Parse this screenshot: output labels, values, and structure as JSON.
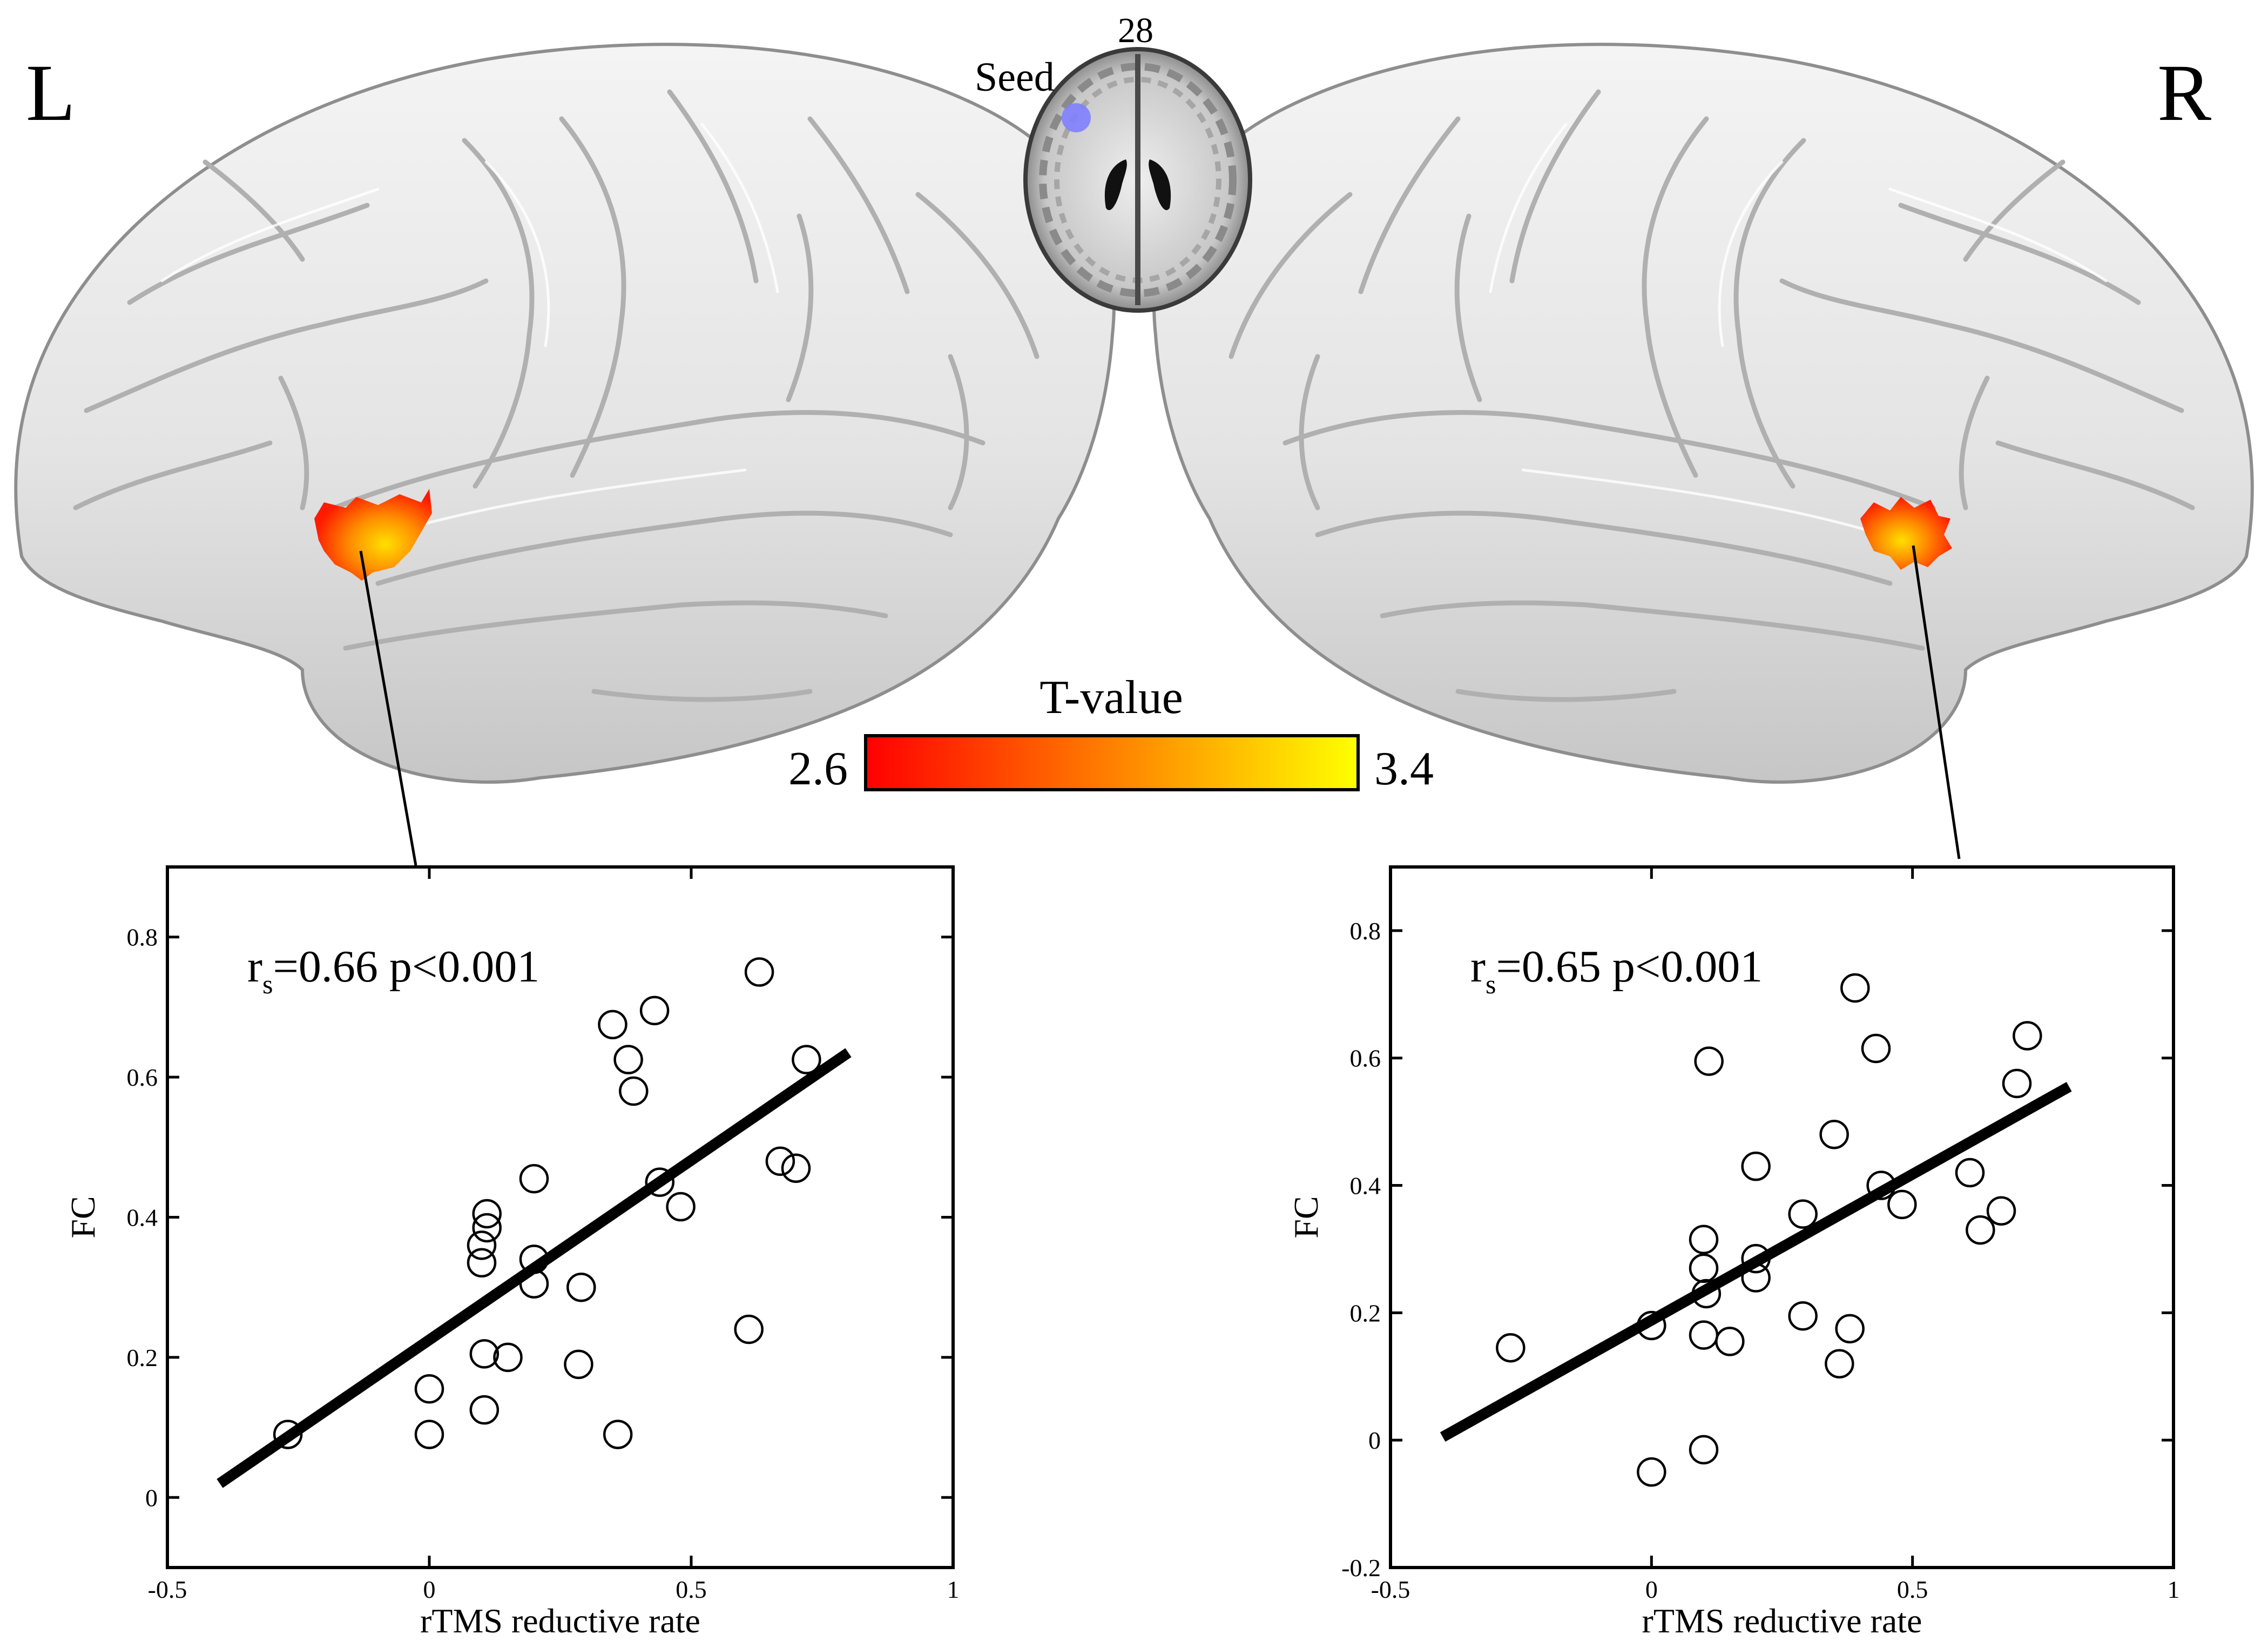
{
  "figure": {
    "hemisphere_left_label": "L",
    "hemisphere_right_label": "R",
    "slice_label": "28",
    "seed_label": "Seed",
    "colorbar": {
      "title": "T-value",
      "min_label": "2.6",
      "max_label": "3.4",
      "min": 2.6,
      "max": 3.4,
      "colors": [
        "#ff0000",
        "#ff8000",
        "#ffff00"
      ]
    },
    "seed_color": "#8080ff",
    "cluster_colors": [
      "#ff1a00",
      "#ff8c00",
      "#ffe000"
    ]
  },
  "chart_data": [
    {
      "type": "scatter",
      "title": "",
      "annotation": {
        "r": "r",
        "sub": "s",
        "text": "=0.66  p<0.001"
      },
      "xlabel": "rTMS reductive rate",
      "ylabel": "FC",
      "xlim": [
        -0.5,
        1
      ],
      "ylim": [
        -0.1,
        0.9
      ],
      "xticks": [
        -0.5,
        0,
        0.5,
        1
      ],
      "xtick_labels": [
        "-0.5",
        "0",
        "0.5",
        "1"
      ],
      "yticks": [
        0,
        0.2,
        0.4,
        0.6,
        0.8
      ],
      "ytick_labels": [
        "0",
        "0.2",
        "0.4",
        "0.6",
        "0.8"
      ],
      "points": [
        {
          "x": -0.27,
          "y": 0.09
        },
        {
          "x": 0.0,
          "y": 0.155
        },
        {
          "x": 0.0,
          "y": 0.09
        },
        {
          "x": 0.1,
          "y": 0.36
        },
        {
          "x": 0.1,
          "y": 0.335
        },
        {
          "x": 0.11,
          "y": 0.385
        },
        {
          "x": 0.11,
          "y": 0.405
        },
        {
          "x": 0.105,
          "y": 0.205
        },
        {
          "x": 0.105,
          "y": 0.125
        },
        {
          "x": 0.15,
          "y": 0.2
        },
        {
          "x": 0.2,
          "y": 0.455
        },
        {
          "x": 0.2,
          "y": 0.34
        },
        {
          "x": 0.2,
          "y": 0.305
        },
        {
          "x": 0.29,
          "y": 0.3
        },
        {
          "x": 0.285,
          "y": 0.19
        },
        {
          "x": 0.35,
          "y": 0.675
        },
        {
          "x": 0.38,
          "y": 0.625
        },
        {
          "x": 0.39,
          "y": 0.58
        },
        {
          "x": 0.43,
          "y": 0.695
        },
        {
          "x": 0.44,
          "y": 0.45
        },
        {
          "x": 0.48,
          "y": 0.415
        },
        {
          "x": 0.36,
          "y": 0.09
        },
        {
          "x": 0.61,
          "y": 0.24
        },
        {
          "x": 0.63,
          "y": 0.75
        },
        {
          "x": 0.67,
          "y": 0.48
        },
        {
          "x": 0.7,
          "y": 0.47
        },
        {
          "x": 0.72,
          "y": 0.625
        }
      ],
      "fit_line": [
        {
          "x": -0.4,
          "y": 0.02
        },
        {
          "x": 0.8,
          "y": 0.635
        }
      ]
    },
    {
      "type": "scatter",
      "title": "",
      "annotation": {
        "r": "r",
        "sub": "s",
        "text": "=0.65  p<0.001"
      },
      "xlabel": "rTMS reductive rate",
      "ylabel": "FC",
      "xlim": [
        -0.5,
        1
      ],
      "ylim": [
        -0.2,
        0.9
      ],
      "xticks": [
        -0.5,
        0,
        0.5,
        1
      ],
      "xtick_labels": [
        "-0.5",
        "0",
        "0.5",
        "1"
      ],
      "yticks": [
        -0.2,
        0,
        0.2,
        0.4,
        0.6,
        0.8
      ],
      "ytick_labels": [
        "-0.2",
        "0",
        "0.2",
        "0.4",
        "0.6",
        "0.8"
      ],
      "points": [
        {
          "x": -0.27,
          "y": 0.145
        },
        {
          "x": 0.0,
          "y": 0.18
        },
        {
          "x": 0.0,
          "y": -0.05
        },
        {
          "x": 0.1,
          "y": 0.315
        },
        {
          "x": 0.1,
          "y": 0.27
        },
        {
          "x": 0.105,
          "y": 0.23
        },
        {
          "x": 0.1,
          "y": 0.165
        },
        {
          "x": 0.1,
          "y": -0.015
        },
        {
          "x": 0.11,
          "y": 0.595
        },
        {
          "x": 0.15,
          "y": 0.155
        },
        {
          "x": 0.2,
          "y": 0.43
        },
        {
          "x": 0.2,
          "y": 0.285
        },
        {
          "x": 0.2,
          "y": 0.255
        },
        {
          "x": 0.29,
          "y": 0.355
        },
        {
          "x": 0.29,
          "y": 0.195
        },
        {
          "x": 0.36,
          "y": 0.12
        },
        {
          "x": 0.38,
          "y": 0.175
        },
        {
          "x": 0.35,
          "y": 0.48
        },
        {
          "x": 0.39,
          "y": 0.71
        },
        {
          "x": 0.43,
          "y": 0.615
        },
        {
          "x": 0.44,
          "y": 0.4
        },
        {
          "x": 0.48,
          "y": 0.37
        },
        {
          "x": 0.61,
          "y": 0.42
        },
        {
          "x": 0.63,
          "y": 0.33
        },
        {
          "x": 0.67,
          "y": 0.36
        },
        {
          "x": 0.7,
          "y": 0.56
        },
        {
          "x": 0.72,
          "y": 0.635
        }
      ],
      "fit_line": [
        {
          "x": -0.4,
          "y": 0.005
        },
        {
          "x": 0.8,
          "y": 0.555
        }
      ]
    }
  ]
}
